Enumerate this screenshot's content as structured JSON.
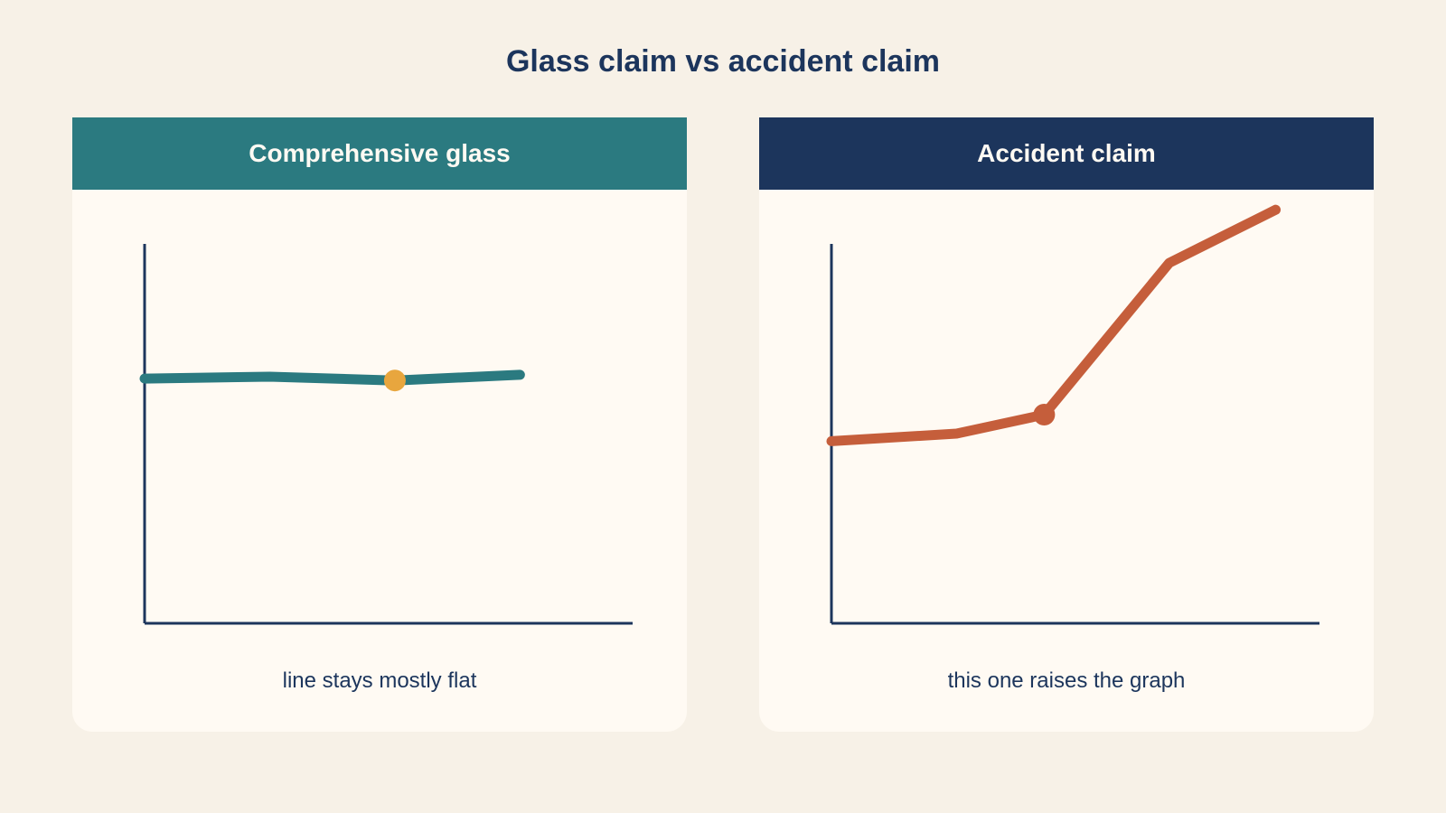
{
  "title": "Glass claim vs accident claim",
  "colors": {
    "background": "#f7f1e7",
    "panel_bg": "#fffaf3",
    "axis": "#1c355c",
    "text": "#1c355c"
  },
  "panels": [
    {
      "header": "Comprehensive glass",
      "header_color": "#2b7a80",
      "caption": "line stays mostly flat"
    },
    {
      "header": "Accident claim",
      "header_color": "#1c355c",
      "caption": "this one raises the graph"
    }
  ],
  "chart_data": [
    {
      "type": "line",
      "title": "Comprehensive glass",
      "xlabel": "",
      "ylabel": "",
      "x": [
        0,
        1,
        2,
        3
      ],
      "ylim": [
        0,
        100
      ],
      "grid": false,
      "series": [
        {
          "values": [
            64.5,
            65,
            64,
            65.5
          ],
          "color": "#2b7a80",
          "highlight_index": 2,
          "highlight_color": "#e8a63e"
        }
      ]
    },
    {
      "type": "line",
      "title": "Accident claim",
      "xlabel": "",
      "ylabel": "",
      "x": [
        0,
        1,
        1.7,
        2.7,
        3.55
      ],
      "ylim": [
        0,
        100
      ],
      "grid": false,
      "series": [
        {
          "values": [
            48,
            50,
            55,
            95,
            109
          ],
          "color": "#c55e3b",
          "highlight_index": 2,
          "highlight_color": "#c55e3b"
        }
      ]
    }
  ]
}
